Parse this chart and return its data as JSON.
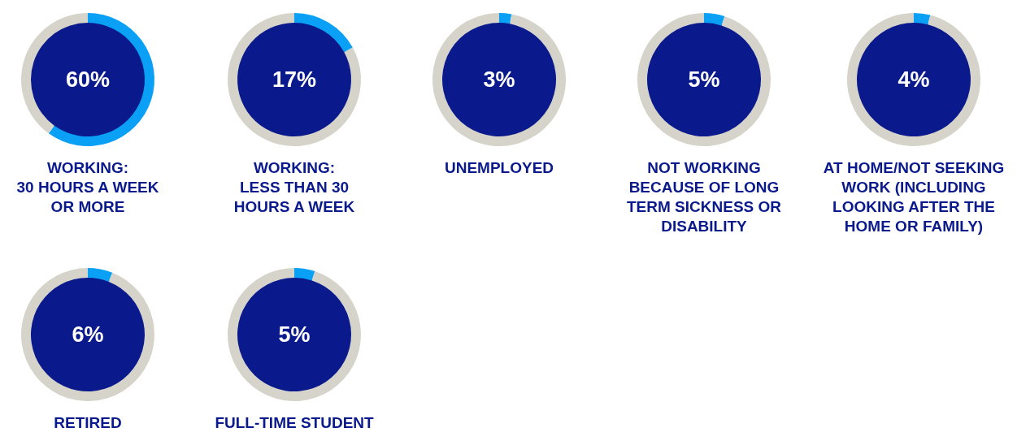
{
  "chart_data": [
    {
      "type": "donut",
      "title": "WORKING:\n30 HOURS A WEEK\nOR MORE",
      "categories": [
        null,
        null
      ],
      "values": [
        60,
        40
      ],
      "colors": [
        "#0aa0f5",
        "#d6d4ca"
      ],
      "annotations": [
        "60%"
      ]
    },
    {
      "type": "donut",
      "title": "WORKING:\nLESS THAN 30\nHOURS A WEEK",
      "categories": [
        null,
        null
      ],
      "values": [
        17,
        83
      ],
      "colors": [
        "#0aa0f5",
        "#d6d4ca"
      ],
      "annotations": [
        "17%"
      ]
    },
    {
      "type": "donut",
      "title": "UNEMPLOYED",
      "categories": [
        null,
        null
      ],
      "values": [
        3,
        97
      ],
      "colors": [
        "#0aa0f5",
        "#d6d4ca"
      ],
      "annotations": [
        "3%"
      ]
    },
    {
      "type": "donut",
      "title": "NOT WORKING\nBECAUSE OF LONG\nTERM SICKNESS OR\nDISABILITY",
      "categories": [
        null,
        null
      ],
      "values": [
        5,
        95
      ],
      "colors": [
        "#0aa0f5",
        "#d6d4ca"
      ],
      "annotations": [
        "5%"
      ]
    },
    {
      "type": "donut",
      "title": "AT HOME/NOT SEEKING\nWORK (INCLUDING\nLOOKING AFTER THE\nHOME OR FAMILY)",
      "categories": [
        null,
        null
      ],
      "values": [
        4,
        96
      ],
      "colors": [
        "#0aa0f5",
        "#d6d4ca"
      ],
      "annotations": [
        "4%"
      ]
    },
    {
      "type": "donut",
      "title": "RETIRED",
      "categories": [
        null,
        null
      ],
      "values": [
        6,
        94
      ],
      "colors": [
        "#0aa0f5",
        "#d6d4ca"
      ],
      "annotations": [
        "6%"
      ]
    },
    {
      "type": "donut",
      "title": "FULL-TIME STUDENT",
      "categories": [
        null,
        null
      ],
      "values": [
        5,
        95
      ],
      "colors": [
        "#0aa0f5",
        "#d6d4ca"
      ],
      "annotations": [
        "5%"
      ]
    }
  ]
}
